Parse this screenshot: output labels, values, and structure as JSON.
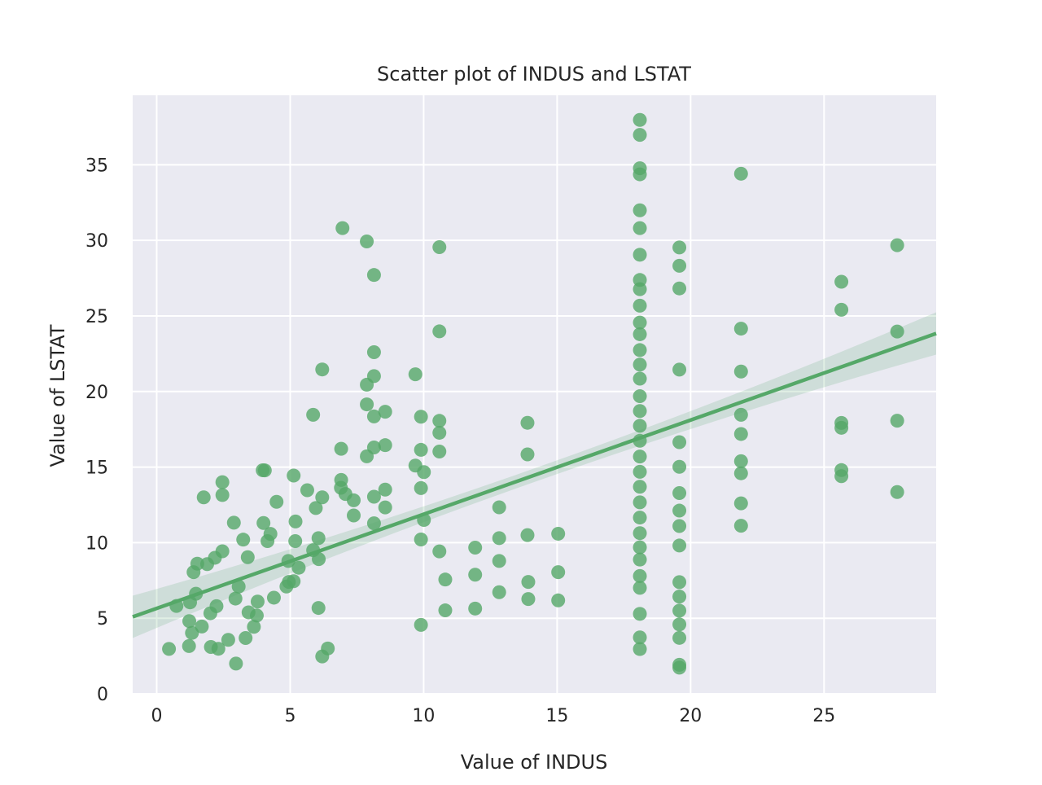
{
  "chart_data": {
    "type": "scatter",
    "title": "Scatter plot of INDUS and LSTAT",
    "xlabel": "Value of INDUS",
    "ylabel": "Value of LSTAT",
    "xlim": [
      -0.9,
      29.2
    ],
    "ylim": [
      0,
      39.6
    ],
    "xticks": [
      0,
      5,
      10,
      15,
      20,
      25
    ],
    "yticks": [
      0,
      5,
      10,
      15,
      20,
      25,
      30,
      35
    ],
    "grid": true,
    "colors": {
      "marker": "#55a868",
      "background": "#eaeaf2",
      "grid": "#ffffff",
      "band": "#55a868"
    },
    "regression": {
      "slope": 0.623,
      "intercept": 5.65,
      "x_range": [
        -0.9,
        29.2
      ],
      "ci_half_width_at_ends": 1.4,
      "ci_half_width_center": 0.45
    },
    "points": [
      [
        0.46,
        2.97
      ],
      [
        0.74,
        5.81
      ],
      [
        1.21,
        3.16
      ],
      [
        1.22,
        4.81
      ],
      [
        1.25,
        6.05
      ],
      [
        1.32,
        4.03
      ],
      [
        1.38,
        8.05
      ],
      [
        1.47,
        6.62
      ],
      [
        1.52,
        8.61
      ],
      [
        1.69,
        4.45
      ],
      [
        1.76,
        13.0
      ],
      [
        1.89,
        8.58
      ],
      [
        2.01,
        5.33
      ],
      [
        2.03,
        3.1
      ],
      [
        2.18,
        9.0
      ],
      [
        2.24,
        5.8
      ],
      [
        2.31,
        2.98
      ],
      [
        2.46,
        13.15
      ],
      [
        2.46,
        14.0
      ],
      [
        2.68,
        3.57
      ],
      [
        2.89,
        11.32
      ],
      [
        2.97,
        2.0
      ],
      [
        3.24,
        10.2
      ],
      [
        3.33,
        3.69
      ],
      [
        3.41,
        9.04
      ],
      [
        3.44,
        5.39
      ],
      [
        3.64,
        4.43
      ],
      [
        3.75,
        5.18
      ],
      [
        3.97,
        14.79
      ],
      [
        4.05,
        14.78
      ],
      [
        4.15,
        10.1
      ],
      [
        4.39,
        6.36
      ],
      [
        4.49,
        12.7
      ],
      [
        4.86,
        7.1
      ],
      [
        4.93,
        8.79
      ],
      [
        5.13,
        7.45
      ],
      [
        5.13,
        14.44
      ],
      [
        5.19,
        10.1
      ],
      [
        5.32,
        8.34
      ],
      [
        5.64,
        13.47
      ],
      [
        5.86,
        18.46
      ],
      [
        5.96,
        12.29
      ],
      [
        6.06,
        5.68
      ],
      [
        6.07,
        8.91
      ],
      [
        6.2,
        2.47
      ],
      [
        6.2,
        21.46
      ],
      [
        6.41,
        3.0
      ],
      [
        6.91,
        16.21
      ],
      [
        6.96,
        30.81
      ],
      [
        6.91,
        14.15
      ],
      [
        7.07,
        13.22
      ],
      [
        7.38,
        12.8
      ],
      [
        7.38,
        11.8
      ],
      [
        7.87,
        20.45
      ],
      [
        7.87,
        29.93
      ],
      [
        7.87,
        15.71
      ],
      [
        8.14,
        27.71
      ],
      [
        8.14,
        22.6
      ],
      [
        8.14,
        21.02
      ],
      [
        8.14,
        18.35
      ],
      [
        8.14,
        16.3
      ],
      [
        8.14,
        11.28
      ],
      [
        8.56,
        18.66
      ],
      [
        8.56,
        16.45
      ],
      [
        8.56,
        12.33
      ],
      [
        9.69,
        21.14
      ],
      [
        9.69,
        15.1
      ],
      [
        9.9,
        18.33
      ],
      [
        9.9,
        16.14
      ],
      [
        9.9,
        4.56
      ],
      [
        10.01,
        14.67
      ],
      [
        10.59,
        29.55
      ],
      [
        10.59,
        23.98
      ],
      [
        10.59,
        18.06
      ],
      [
        10.59,
        9.42
      ],
      [
        10.81,
        5.52
      ],
      [
        11.93,
        9.67
      ],
      [
        11.93,
        7.88
      ],
      [
        11.93,
        5.64
      ],
      [
        12.83,
        12.34
      ],
      [
        12.83,
        8.79
      ],
      [
        12.83,
        6.72
      ],
      [
        13.89,
        17.93
      ],
      [
        13.89,
        15.84
      ],
      [
        13.89,
        10.5
      ],
      [
        13.92,
        6.27
      ],
      [
        15.04,
        10.59
      ],
      [
        15.04,
        8.05
      ],
      [
        15.04,
        6.18
      ],
      [
        18.1,
        37.97
      ],
      [
        18.1,
        36.98
      ],
      [
        18.1,
        34.77
      ],
      [
        18.1,
        34.37
      ],
      [
        18.1,
        31.99
      ],
      [
        18.1,
        30.81
      ],
      [
        18.1,
        29.05
      ],
      [
        18.1,
        27.38
      ],
      [
        18.1,
        26.77
      ],
      [
        18.1,
        25.68
      ],
      [
        18.1,
        24.56
      ],
      [
        18.1,
        23.79
      ],
      [
        18.1,
        22.74
      ],
      [
        18.1,
        21.78
      ],
      [
        18.1,
        20.85
      ],
      [
        18.1,
        19.69
      ],
      [
        18.1,
        18.71
      ],
      [
        18.1,
        17.73
      ],
      [
        18.1,
        16.74
      ],
      [
        18.1,
        15.7
      ],
      [
        18.1,
        14.69
      ],
      [
        18.1,
        13.7
      ],
      [
        18.1,
        12.67
      ],
      [
        18.1,
        11.66
      ],
      [
        18.1,
        10.63
      ],
      [
        18.1,
        9.69
      ],
      [
        18.1,
        8.88
      ],
      [
        18.1,
        7.79
      ],
      [
        18.1,
        7.01
      ],
      [
        18.1,
        5.29
      ],
      [
        18.1,
        3.73
      ],
      [
        18.1,
        2.96
      ],
      [
        19.58,
        29.53
      ],
      [
        19.58,
        28.32
      ],
      [
        19.58,
        26.82
      ],
      [
        19.58,
        21.45
      ],
      [
        19.58,
        16.65
      ],
      [
        19.58,
        15.02
      ],
      [
        19.58,
        13.28
      ],
      [
        19.58,
        12.12
      ],
      [
        19.58,
        11.1
      ],
      [
        19.58,
        9.81
      ],
      [
        19.58,
        7.39
      ],
      [
        19.58,
        6.43
      ],
      [
        19.58,
        5.5
      ],
      [
        19.58,
        4.59
      ],
      [
        19.58,
        3.7
      ],
      [
        19.58,
        1.92
      ],
      [
        19.58,
        1.73
      ],
      [
        21.89,
        34.41
      ],
      [
        21.89,
        24.16
      ],
      [
        21.89,
        21.32
      ],
      [
        21.89,
        18.46
      ],
      [
        21.89,
        17.19
      ],
      [
        21.89,
        15.39
      ],
      [
        21.89,
        14.59
      ],
      [
        21.89,
        12.6
      ],
      [
        21.89,
        11.12
      ],
      [
        25.65,
        27.26
      ],
      [
        25.65,
        25.41
      ],
      [
        25.65,
        17.92
      ],
      [
        25.65,
        17.6
      ],
      [
        25.65,
        14.8
      ],
      [
        25.65,
        14.4
      ],
      [
        27.74,
        29.68
      ],
      [
        27.74,
        23.97
      ],
      [
        27.74,
        18.07
      ],
      [
        27.74,
        13.35
      ],
      [
        2.46,
        9.43
      ],
      [
        2.95,
        6.3
      ],
      [
        3.07,
        7.1
      ],
      [
        3.78,
        6.1
      ],
      [
        4.0,
        11.3
      ],
      [
        4.26,
        10.58
      ],
      [
        4.95,
        7.4
      ],
      [
        5.2,
        11.4
      ],
      [
        5.86,
        9.5
      ],
      [
        6.2,
        13.0
      ],
      [
        6.06,
        10.3
      ],
      [
        6.9,
        13.63
      ],
      [
        7.87,
        19.15
      ],
      [
        8.14,
        13.04
      ],
      [
        8.56,
        13.51
      ],
      [
        9.9,
        10.21
      ],
      [
        10.01,
        11.5
      ],
      [
        9.9,
        13.61
      ],
      [
        10.59,
        17.27
      ],
      [
        10.59,
        16.03
      ],
      [
        10.81,
        7.56
      ],
      [
        13.92,
        7.4
      ],
      [
        12.83,
        10.3
      ]
    ]
  }
}
